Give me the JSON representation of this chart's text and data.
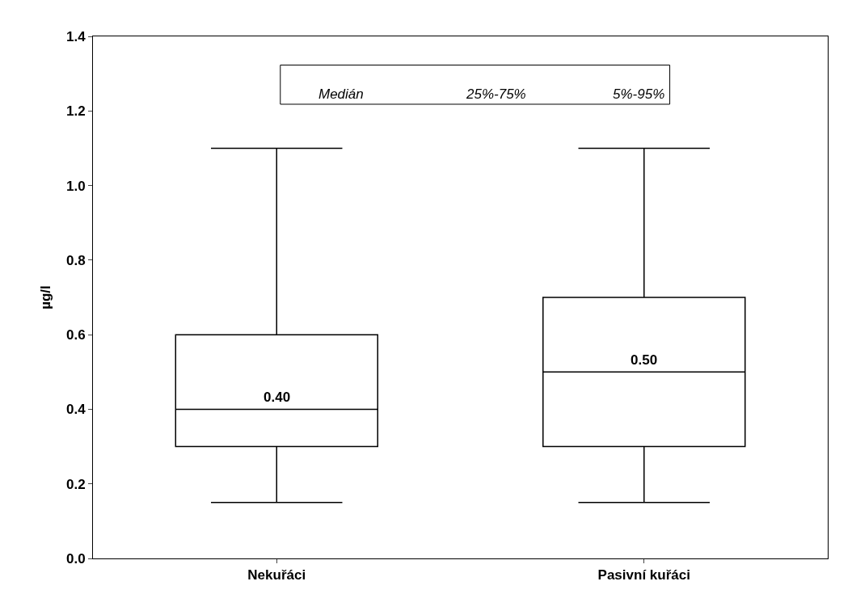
{
  "chart_data": {
    "type": "box",
    "ylabel": "µg/l",
    "categories": [
      "Nekuřáci",
      "Pasivní kuřáci"
    ],
    "boxes": [
      {
        "low": 0.15,
        "q1": 0.3,
        "median": 0.4,
        "q3": 0.6,
        "high": 1.1
      },
      {
        "low": 0.15,
        "q1": 0.3,
        "median": 0.5,
        "q3": 0.7,
        "high": 1.1
      }
    ],
    "value_labels": [
      "0.40",
      "0.50"
    ],
    "color": "#000000",
    "ylim": [
      0,
      1.4
    ],
    "yticks": [
      {
        "value": 0,
        "label": "0.0"
      },
      {
        "value": 0.2,
        "label": "0.2"
      },
      {
        "value": 0.4,
        "label": "0.4"
      },
      {
        "value": 0.6,
        "label": "0.6"
      },
      {
        "value": 0.8,
        "label": "0.8"
      },
      {
        "value": 1.0,
        "label": "1.0"
      },
      {
        "value": 1.2,
        "label": "1.2"
      },
      {
        "value": 1.4,
        "label": "1.4"
      }
    ],
    "annotations": [
      "Medián",
      "25%-75%",
      "5%-95%"
    ]
  }
}
